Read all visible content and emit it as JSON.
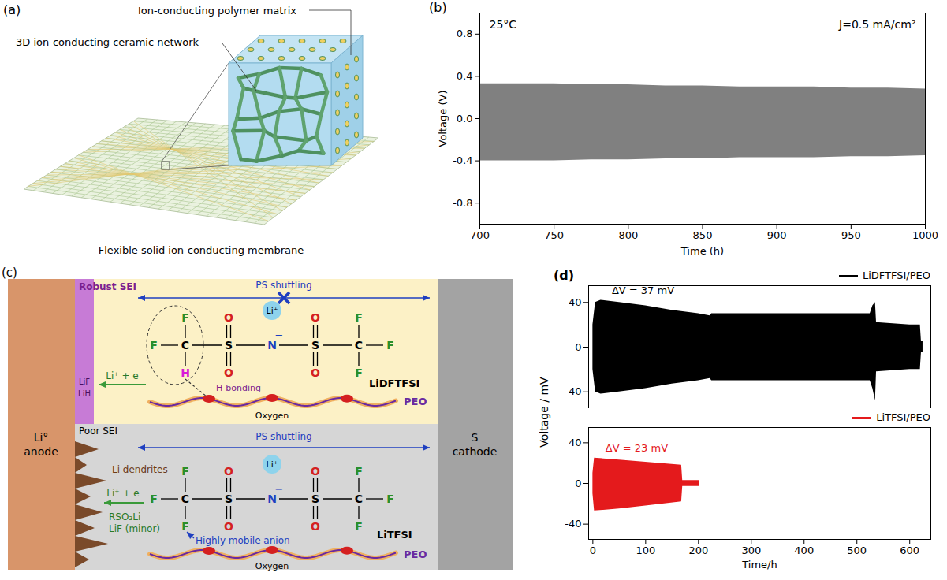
{
  "panel_a": {
    "letter": "(a)",
    "labels": {
      "polymer": "Ion-conducting polymer matrix",
      "ceramic": "3D ion-conducting ceramic network",
      "membrane": "Flexible solid ion-conducting membrane"
    }
  },
  "chart_data": [
    {
      "letter": "(b)",
      "type": "band",
      "xlabel": "Time (h)",
      "ylabel": "Voltage (V)",
      "xlim": [
        700,
        1000
      ],
      "xticks": [
        700,
        750,
        800,
        850,
        900,
        950,
        1000
      ],
      "ylim": [
        -1,
        1
      ],
      "yticks": [
        -0.8,
        -0.4,
        {
          "value": 0,
          "label": "0.0"
        },
        0.4,
        0.8
      ],
      "grid": false,
      "annotations": [
        "25°C",
        "J=0.5 mA/cm²"
      ],
      "series": [
        {
          "color": "#808080",
          "x": [
            700,
            725,
            750,
            775,
            800,
            825,
            850,
            875,
            900,
            925,
            950,
            975,
            1000
          ],
          "upper": [
            0.33,
            0.33,
            0.33,
            0.32,
            0.32,
            0.31,
            0.31,
            0.3,
            0.3,
            0.3,
            0.29,
            0.29,
            0.28
          ],
          "lower": [
            -0.4,
            -0.4,
            -0.4,
            -0.39,
            -0.39,
            -0.38,
            -0.38,
            -0.37,
            -0.37,
            -0.37,
            -0.36,
            -0.36,
            -0.35
          ]
        }
      ]
    },
    {
      "letter": "(d)",
      "type": "band",
      "xlabel": "Time/h",
      "ylabel": "Voltage / mV",
      "xlim": [
        -8,
        640
      ],
      "xticks": [
        0,
        100,
        200,
        300,
        400,
        500,
        600
      ],
      "legend": "top-right",
      "subplots": [
        {
          "ylim": [
            -55,
            55
          ],
          "yticks": [
            -40,
            0,
            40
          ],
          "tick_labels": "y",
          "series": [
            {
              "name": "LiDFTFSI/PEO",
              "color": "#000000",
              "annotation": "ΔV = 37 mV",
              "x": [
                0,
                5,
                15,
                50,
                100,
                150,
                200,
                222,
                225,
                300,
                400,
                500,
                525,
                530,
                535,
                537,
                600,
                620,
                622,
                625
              ],
              "upper": [
                20,
                40,
                42,
                40,
                37,
                33,
                30,
                28,
                30,
                30,
                30,
                30,
                30,
                37,
                40,
                22,
                20,
                20,
                5,
                5
              ],
              "lower": [
                -20,
                -40,
                -42,
                -40,
                -37,
                -33,
                -30,
                -28,
                -30,
                -30,
                -30,
                -30,
                -30,
                -37,
                -48,
                -22,
                -20,
                -20,
                -5,
                -5
              ]
            }
          ]
        },
        {
          "ylim": [
            -55,
            55
          ],
          "yticks": [
            -40,
            0,
            40
          ],
          "series": [
            {
              "name": "LiTFSI/PEO",
              "color": "#e41a1c",
              "annotation": "ΔV = 23 mV",
              "x": [
                0,
                3,
                50,
                100,
                168,
                170,
                202
              ],
              "upper": [
                10,
                25,
                23,
                21,
                18,
                3,
                3
              ],
              "lower": [
                -10,
                -27,
                -25,
                -22,
                -18,
                -3,
                -3
              ]
            }
          ]
        }
      ]
    }
  ],
  "panel_c": {
    "letter": "(c)",
    "anode": [
      "Li°",
      "anode"
    ],
    "cathode": [
      "S",
      "cathode"
    ],
    "top": {
      "sei": "Robust SEI",
      "sei_products": [
        "LiF",
        "LiH"
      ],
      "shuttle": "PS shuttling",
      "reaction": "Li⁺ + e",
      "salt": "LiDFTFSI",
      "bonding": "H-bonding",
      "oxygen": "Oxygen",
      "polymer": "PEO",
      "atoms": [
        "F",
        "C",
        "F",
        "H",
        "S",
        "O",
        "O",
        "N",
        "−",
        "S",
        "O",
        "O",
        "C",
        "F",
        "F",
        "F",
        "Li⁺"
      ]
    },
    "bottom": {
      "sei": "Poor SEI",
      "dendrites": "Li dendrites",
      "shuttle": "PS shuttling",
      "reaction": "Li⁺ + e",
      "products": [
        "RSO₂Li",
        "LiF (minor)"
      ],
      "anion": "Highly mobile anion",
      "salt": "LiTFSI",
      "oxygen": "Oxygen",
      "polymer": "PEO",
      "atoms": [
        "F",
        "C",
        "F",
        "F",
        "S",
        "O",
        "O",
        "N",
        "−",
        "S",
        "O",
        "O",
        "C",
        "F",
        "F",
        "F",
        "Li⁺"
      ]
    }
  }
}
